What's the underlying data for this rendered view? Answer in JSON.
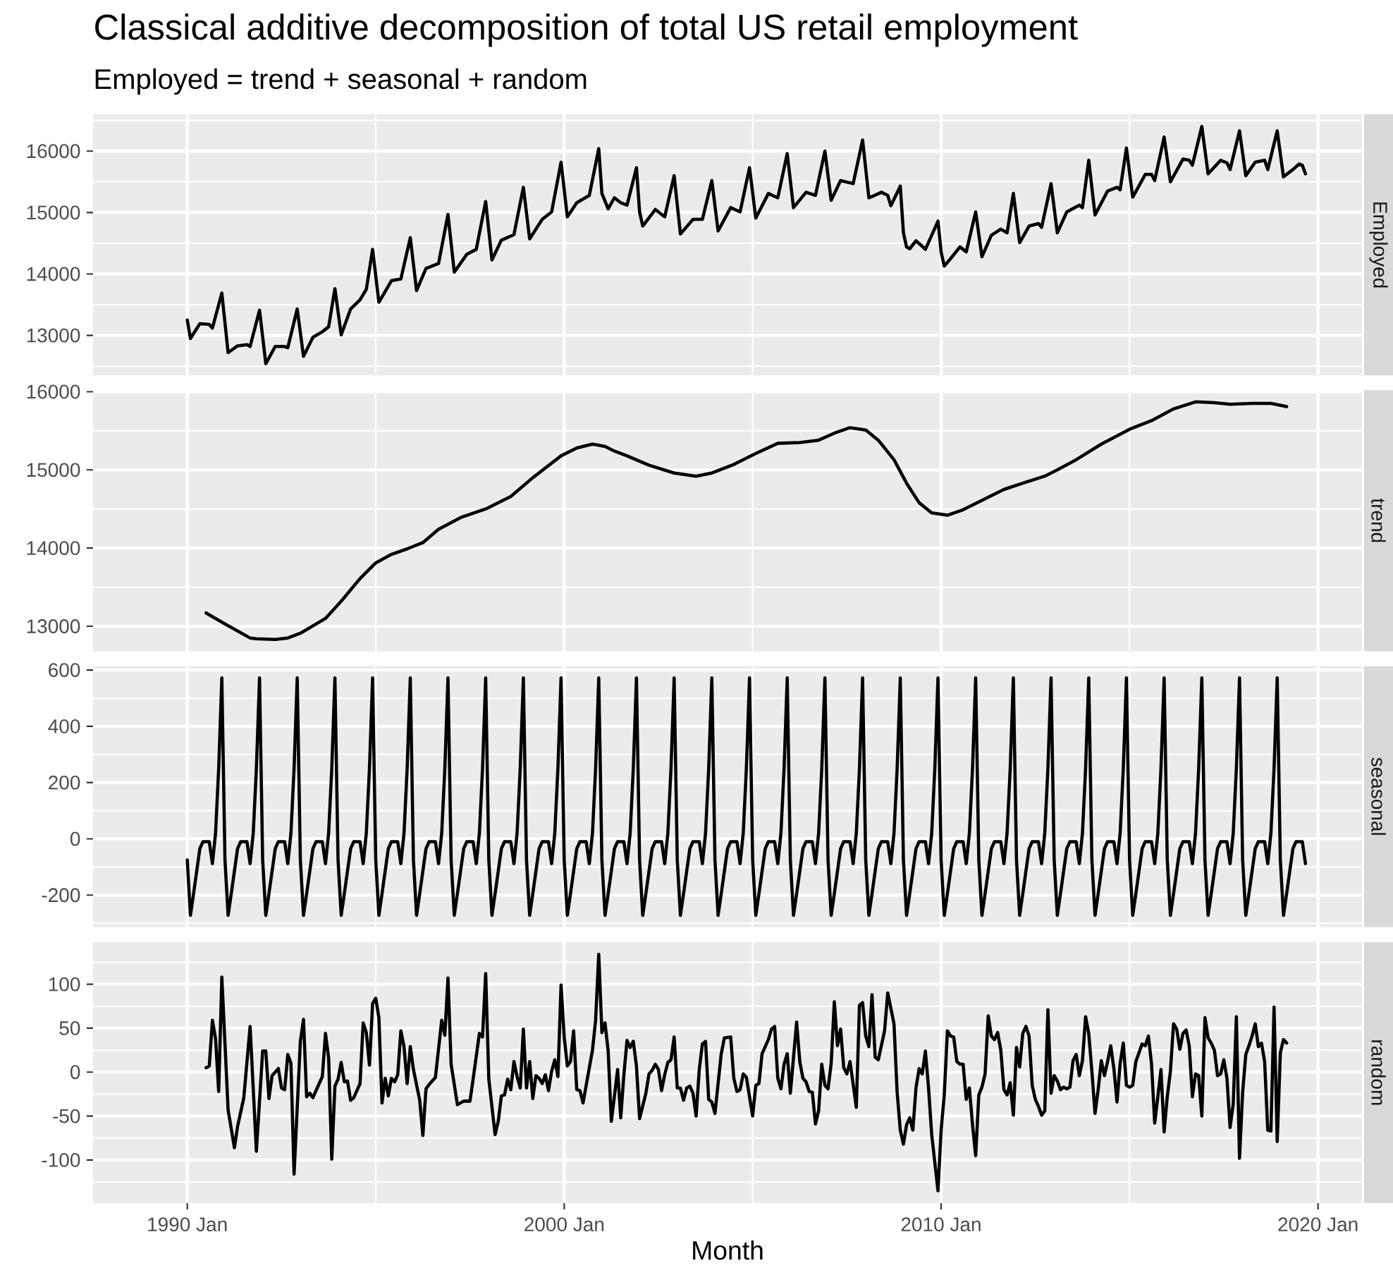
{
  "chart_data": [
    {
      "type": "line",
      "title": "Classical additive decomposition of total US retail employment",
      "subtitle": "Employed = trend + seasonal + random",
      "xlim": [
        "1987-07",
        "2021-03"
      ],
      "xticks": [
        "1990-01",
        "2000-01",
        "2010-01",
        "2020-01"
      ],
      "ylim": [
        12350,
        16600
      ],
      "yticks": [
        13000,
        14000,
        15000,
        16000
      ],
      "grid": true,
      "tick_labels": "y",
      "x": [
        "1990-01",
        "1990-02",
        "1990-05",
        "1990-08",
        "1990-09",
        "1990-12",
        "1991-02",
        "1991-05",
        "1991-08",
        "1991-09",
        "1991-12",
        "1992-02",
        "1992-05",
        "1992-08",
        "1992-09",
        "1992-12",
        "1993-02",
        "1993-05",
        "1993-08",
        "1993-10",
        "1993-12",
        "1994-02",
        "1994-05",
        "1994-08",
        "1994-10",
        "1994-12",
        "1995-02",
        "1995-06",
        "1995-09",
        "1995-12",
        "1996-02",
        "1996-05",
        "1996-09",
        "1996-12",
        "1997-02",
        "1997-06",
        "1997-09",
        "1997-12",
        "1998-02",
        "1998-05",
        "1998-09",
        "1998-12",
        "1999-02",
        "1999-06",
        "1999-09",
        "1999-12",
        "2000-02",
        "2000-05",
        "2000-09",
        "2000-12",
        "2001-01",
        "2001-03",
        "2001-05",
        "2001-07",
        "2001-09",
        "2001-12",
        "2002-01",
        "2002-02",
        "2002-06",
        "2002-09",
        "2002-12",
        "2003-02",
        "2003-06",
        "2003-09",
        "2003-12",
        "2004-02",
        "2004-06",
        "2004-09",
        "2004-12",
        "2005-02",
        "2005-06",
        "2005-09",
        "2005-12",
        "2006-02",
        "2006-06",
        "2006-09",
        "2006-12",
        "2007-02",
        "2007-05",
        "2007-09",
        "2007-12",
        "2008-02",
        "2008-03",
        "2008-06",
        "2008-08",
        "2008-09",
        "2008-12",
        "2009-01",
        "2009-02",
        "2009-03",
        "2009-05",
        "2009-07",
        "2009-08",
        "2009-12",
        "2010-01",
        "2010-02",
        "2010-04",
        "2010-07",
        "2010-09",
        "2010-12",
        "2011-02",
        "2011-05",
        "2011-08",
        "2011-10",
        "2011-12",
        "2012-02",
        "2012-05",
        "2012-08",
        "2012-09",
        "2012-12",
        "2013-02",
        "2013-05",
        "2013-09",
        "2013-10",
        "2013-12",
        "2014-02",
        "2014-06",
        "2014-09",
        "2014-10",
        "2014-12",
        "2015-02",
        "2015-06",
        "2015-08",
        "2015-09",
        "2015-12",
        "2016-02",
        "2016-06",
        "2016-08",
        "2016-09",
        "2016-12",
        "2017-02",
        "2017-06",
        "2017-08",
        "2017-09",
        "2017-12",
        "2018-02",
        "2018-05",
        "2018-08",
        "2018-09",
        "2018-12",
        "2019-02",
        "2019-05",
        "2019-07",
        "2019-08",
        "2019-09"
      ],
      "series": [
        {
          "name": "Employed",
          "color": "#000000",
          "values": [
            13250,
            12950,
            13190,
            13180,
            13120,
            13690,
            12720,
            12830,
            12850,
            12820,
            13410,
            12540,
            12820,
            12820,
            12800,
            13430,
            12660,
            12970,
            13060,
            13140,
            13760,
            13010,
            13430,
            13580,
            13750,
            14400,
            13540,
            13890,
            13920,
            14590,
            13730,
            14090,
            14170,
            14970,
            14030,
            14320,
            14400,
            15180,
            14230,
            14550,
            14640,
            15410,
            14570,
            14890,
            15010,
            15820,
            14930,
            15160,
            15280,
            16040,
            15310,
            15060,
            15240,
            15160,
            15120,
            15730,
            15010,
            14780,
            15050,
            14930,
            15600,
            14650,
            14890,
            14890,
            15520,
            14700,
            15080,
            15010,
            15730,
            14910,
            15310,
            15240,
            15960,
            15080,
            15330,
            15280,
            16000,
            15200,
            15520,
            15470,
            16180,
            15240,
            15260,
            15330,
            15280,
            15110,
            15430,
            14670,
            14440,
            14410,
            14540,
            14450,
            14400,
            14860,
            14360,
            14130,
            14250,
            14440,
            14360,
            15010,
            14280,
            14630,
            14730,
            14670,
            15310,
            14510,
            14780,
            14820,
            14760,
            15470,
            14670,
            15010,
            15120,
            15080,
            15850,
            14960,
            15350,
            15410,
            15370,
            16050,
            15250,
            15620,
            15620,
            15520,
            16230,
            15500,
            15870,
            15850,
            15770,
            16400,
            15630,
            15850,
            15810,
            15700,
            16330,
            15600,
            15820,
            15850,
            15700,
            16330,
            15580,
            15700,
            15790,
            15770,
            15630
          ]
        }
      ]
    },
    {
      "type": "line",
      "xlim": [
        "1987-07",
        "2021-03"
      ],
      "xticks": [
        "1990-01",
        "2000-01",
        "2010-01",
        "2020-01"
      ],
      "ylim": [
        12680,
        16020
      ],
      "yticks": [
        13000,
        14000,
        15000,
        16000
      ],
      "grid": true,
      "tick_labels": "y",
      "x": [
        "1990-07",
        "1991-01",
        "1991-09",
        "1991-11",
        "1992-05",
        "1992-09",
        "1993-01",
        "1993-09",
        "1994-02",
        "1994-08",
        "1995-01",
        "1995-06",
        "1995-11",
        "1996-04",
        "1996-09",
        "1997-04",
        "1997-12",
        "1998-08",
        "1999-03",
        "1999-12",
        "2000-05",
        "2000-10",
        "2001-02",
        "2001-05",
        "2001-09",
        "2002-04",
        "2002-12",
        "2003-07",
        "2003-12",
        "2004-07",
        "2005-02",
        "2005-09",
        "2006-04",
        "2006-10",
        "2007-03",
        "2007-08",
        "2008-01",
        "2008-05",
        "2008-10",
        "2009-02",
        "2009-06",
        "2009-10",
        "2010-03",
        "2010-08",
        "2011-02",
        "2011-09",
        "2012-03",
        "2012-10",
        "2013-02",
        "2013-08",
        "2014-04",
        "2015-01",
        "2015-08",
        "2016-03",
        "2016-10",
        "2017-04",
        "2017-09",
        "2018-04",
        "2018-10",
        "2019-03"
      ],
      "series": [
        {
          "name": "trend",
          "color": "#000000",
          "values": [
            13170,
            13030,
            12850,
            12840,
            12830,
            12850,
            12910,
            13100,
            13320,
            13610,
            13810,
            13920,
            13990,
            14070,
            14240,
            14390,
            14500,
            14660,
            14900,
            15180,
            15280,
            15330,
            15300,
            15240,
            15180,
            15060,
            14960,
            14920,
            14960,
            15070,
            15210,
            15340,
            15350,
            15380,
            15470,
            15540,
            15510,
            15380,
            15130,
            14830,
            14580,
            14450,
            14420,
            14490,
            14610,
            14750,
            14830,
            14920,
            15000,
            15130,
            15330,
            15520,
            15630,
            15780,
            15870,
            15860,
            15840,
            15850,
            15850,
            15810
          ]
        }
      ]
    },
    {
      "type": "line",
      "xlim": [
        "1987-07",
        "2021-03"
      ],
      "xticks": [
        "1990-01",
        "2000-01",
        "2010-01",
        "2020-01"
      ],
      "ylim": [
        -314,
        614
      ],
      "yticks": [
        -200,
        0,
        200,
        400,
        600
      ],
      "grid": true,
      "tick_labels": "y",
      "x": [
        "1990-01",
        "1990-02",
        "1990-03",
        "1990-04",
        "1990-05",
        "1990-06",
        "1990-07",
        "1990-08",
        "1990-09",
        "1990-10",
        "1990-11",
        "1990-12",
        "1991-01",
        "1991-02",
        "1991-03",
        "1991-04",
        "1991-05",
        "1991-06",
        "1991-07",
        "1991-08",
        "1991-09",
        "1991-10",
        "1991-11",
        "1991-12",
        "1992-01",
        "1992-02",
        "1992-03",
        "1992-04",
        "1992-05",
        "1992-06",
        "1992-07",
        "1992-08",
        "1992-09",
        "1992-10",
        "1992-11",
        "1992-12",
        "1993-01",
        "1993-02",
        "1993-03",
        "1993-04",
        "1993-05",
        "1993-06",
        "1993-07",
        "1993-08",
        "1993-09",
        "1993-10",
        "1993-11",
        "1993-12",
        "1994-01",
        "1994-02",
        "1994-03",
        "1994-04",
        "1994-05",
        "1994-06",
        "1994-07",
        "1994-08",
        "1994-09",
        "1994-10",
        "1994-11",
        "1994-12",
        "1995-01",
        "1995-02",
        "1995-03",
        "1995-04",
        "1995-05",
        "1995-06",
        "1995-07",
        "1995-08",
        "1995-09",
        "1995-10",
        "1995-11",
        "1995-12",
        "1996-01",
        "1996-02",
        "1996-03",
        "1996-04",
        "1996-05",
        "1996-06",
        "1996-07",
        "1996-08",
        "1996-09",
        "1996-10",
        "1996-11",
        "1996-12",
        "1997-01",
        "1997-02",
        "1997-03",
        "1997-04",
        "1997-05",
        "1997-06",
        "1997-07",
        "1997-08",
        "1997-09",
        "1997-10",
        "1997-11",
        "1997-12",
        "1998-01",
        "1998-02",
        "1998-03",
        "1998-04",
        "1998-05",
        "1998-06",
        "1998-07",
        "1998-08",
        "1998-09",
        "1998-10",
        "1998-11",
        "1998-12",
        "1999-01",
        "1999-02",
        "1999-03",
        "1999-04",
        "1999-05",
        "1999-06",
        "1999-07",
        "1999-08",
        "1999-09",
        "1999-10",
        "1999-11",
        "1999-12",
        "2000-01",
        "2000-02",
        "2000-03",
        "2000-04",
        "2000-05",
        "2000-06",
        "2000-07",
        "2000-08",
        "2000-09",
        "2000-10",
        "2000-11",
        "2000-12",
        "2001-01",
        "2001-02",
        "2001-03",
        "2001-04",
        "2001-05",
        "2001-06",
        "2001-07",
        "2001-08",
        "2001-09",
        "2001-10",
        "2001-11",
        "2001-12",
        "2002-01",
        "2002-02",
        "2002-03",
        "2002-04",
        "2002-05",
        "2002-06",
        "2002-07",
        "2002-08",
        "2002-09",
        "2002-10",
        "2002-11",
        "2002-12",
        "2003-01",
        "2003-02",
        "2003-03",
        "2003-04",
        "2003-05",
        "2003-06",
        "2003-07",
        "2003-08",
        "2003-09",
        "2003-10",
        "2003-11",
        "2003-12",
        "2004-01",
        "2004-02",
        "2004-03",
        "2004-04",
        "2004-05",
        "2004-06",
        "2004-07",
        "2004-08",
        "2004-09",
        "2004-10",
        "2004-11",
        "2004-12",
        "2005-01",
        "2005-02",
        "2005-03",
        "2005-04",
        "2005-05",
        "2005-06",
        "2005-07",
        "2005-08",
        "2005-09",
        "2005-10",
        "2005-11",
        "2005-12",
        "2006-01",
        "2006-02",
        "2006-03",
        "2006-04",
        "2006-05",
        "2006-06",
        "2006-07",
        "2006-08",
        "2006-09",
        "2006-10",
        "2006-11",
        "2006-12",
        "2007-01",
        "2007-02",
        "2007-03",
        "2007-04",
        "2007-05",
        "2007-06",
        "2007-07",
        "2007-08",
        "2007-09",
        "2007-10",
        "2007-11",
        "2007-12",
        "2008-01",
        "2008-02",
        "2008-03",
        "2008-04",
        "2008-05",
        "2008-06",
        "2008-07",
        "2008-08",
        "2008-09",
        "2008-10",
        "2008-11",
        "2008-12",
        "2009-01",
        "2009-02",
        "2009-03",
        "2009-04",
        "2009-05",
        "2009-06",
        "2009-07",
        "2009-08",
        "2009-09",
        "2009-10",
        "2009-11",
        "2009-12",
        "2010-01",
        "2010-02",
        "2010-03",
        "2010-04",
        "2010-05",
        "2010-06",
        "2010-07",
        "2010-08",
        "2010-09",
        "2010-10",
        "2010-11",
        "2010-12",
        "2011-01",
        "2011-02",
        "2011-03",
        "2011-04",
        "2011-05",
        "2011-06",
        "2011-07",
        "2011-08",
        "2011-09",
        "2011-10",
        "2011-11",
        "2011-12",
        "2012-01",
        "2012-02",
        "2012-03",
        "2012-04",
        "2012-05",
        "2012-06",
        "2012-07",
        "2012-08",
        "2012-09",
        "2012-10",
        "2012-11",
        "2012-12",
        "2013-01",
        "2013-02",
        "2013-03",
        "2013-04",
        "2013-05",
        "2013-06",
        "2013-07",
        "2013-08",
        "2013-09",
        "2013-10",
        "2013-11",
        "2013-12",
        "2014-01",
        "2014-02",
        "2014-03",
        "2014-04",
        "2014-05",
        "2014-06",
        "2014-07",
        "2014-08",
        "2014-09",
        "2014-10",
        "2014-11",
        "2014-12",
        "2015-01",
        "2015-02",
        "2015-03",
        "2015-04",
        "2015-05",
        "2015-06",
        "2015-07",
        "2015-08",
        "2015-09",
        "2015-10",
        "2015-11",
        "2015-12",
        "2016-01",
        "2016-02",
        "2016-03",
        "2016-04",
        "2016-05",
        "2016-06",
        "2016-07",
        "2016-08",
        "2016-09",
        "2016-10",
        "2016-11",
        "2016-12",
        "2017-01",
        "2017-02",
        "2017-03",
        "2017-04",
        "2017-05",
        "2017-06",
        "2017-07",
        "2017-08",
        "2017-09",
        "2017-10",
        "2017-11",
        "2017-12",
        "2018-01",
        "2018-02",
        "2018-03",
        "2018-04",
        "2018-05",
        "2018-06",
        "2018-07",
        "2018-08",
        "2018-09",
        "2018-10",
        "2018-11",
        "2018-12",
        "2019-01",
        "2019-02",
        "2019-03",
        "2019-04",
        "2019-05",
        "2019-06",
        "2019-07",
        "2019-08",
        "2019-09"
      ],
      "series": [
        {
          "name": "seasonal",
          "color": "#000000",
          "values": [
            -75,
            -272,
            -195,
            -115,
            -35,
            -10,
            -10,
            -10,
            -88,
            20,
            250,
            572,
            -75,
            -272,
            -195,
            -115,
            -35,
            -10,
            -10,
            -10,
            -88,
            20,
            250,
            572,
            -75,
            -272,
            -195,
            -115,
            -35,
            -10,
            -10,
            -10,
            -88,
            20,
            250,
            572,
            -75,
            -272,
            -195,
            -115,
            -35,
            -10,
            -10,
            -10,
            -88,
            20,
            250,
            572,
            -75,
            -272,
            -195,
            -115,
            -35,
            -10,
            -10,
            -10,
            -88,
            20,
            250,
            572,
            -75,
            -272,
            -195,
            -115,
            -35,
            -10,
            -10,
            -10,
            -88,
            20,
            250,
            572,
            -75,
            -272,
            -195,
            -115,
            -35,
            -10,
            -10,
            -10,
            -88,
            20,
            250,
            572,
            -75,
            -272,
            -195,
            -115,
            -35,
            -10,
            -10,
            -10,
            -88,
            20,
            250,
            572,
            -75,
            -272,
            -195,
            -115,
            -35,
            -10,
            -10,
            -10,
            -88,
            20,
            250,
            572,
            -75,
            -272,
            -195,
            -115,
            -35,
            -10,
            -10,
            -10,
            -88,
            20,
            250,
            572,
            -75,
            -272,
            -195,
            -115,
            -35,
            -10,
            -10,
            -10,
            -88,
            20,
            250,
            572,
            -75,
            -272,
            -195,
            -115,
            -35,
            -10,
            -10,
            -10,
            -88,
            20,
            250,
            572,
            -75,
            -272,
            -195,
            -115,
            -35,
            -10,
            -10,
            -10,
            -88,
            20,
            250,
            572,
            -75,
            -272,
            -195,
            -115,
            -35,
            -10,
            -10,
            -10,
            -88,
            20,
            250,
            572,
            -75,
            -272,
            -195,
            -115,
            -35,
            -10,
            -10,
            -10,
            -88,
            20,
            250,
            572,
            -75,
            -272,
            -195,
            -115,
            -35,
            -10,
            -10,
            -10,
            -88,
            20,
            250,
            572,
            -75,
            -272,
            -195,
            -115,
            -35,
            -10,
            -10,
            -10,
            -88,
            20,
            250,
            572,
            -75,
            -272,
            -195,
            -115,
            -35,
            -10,
            -10,
            -10,
            -88,
            20,
            250,
            572,
            -75,
            -272,
            -195,
            -115,
            -35,
            -10,
            -10,
            -10,
            -88,
            20,
            250,
            572,
            -75,
            -272,
            -195,
            -115,
            -35,
            -10,
            -10,
            -10,
            -88,
            20,
            250,
            572,
            -75,
            -272,
            -195,
            -115,
            -35,
            -10,
            -10,
            -10,
            -88,
            20,
            250,
            572,
            -75,
            -272,
            -195,
            -115,
            -35,
            -10,
            -10,
            -10,
            -88,
            20,
            250,
            572,
            -75,
            -272,
            -195,
            -115,
            -35,
            -10,
            -10,
            -10,
            -88,
            20,
            250,
            572,
            -75,
            -272,
            -195,
            -115,
            -35,
            -10,
            -10,
            -10,
            -88,
            20,
            250,
            572,
            -75,
            -272,
            -195,
            -115,
            -35,
            -10,
            -10,
            -10,
            -88,
            20,
            250,
            572,
            -75,
            -272,
            -195,
            -115,
            -35,
            -10,
            -10,
            -10,
            -88,
            20,
            250,
            572,
            -75,
            -272,
            -195,
            -115,
            -35,
            -10,
            -10,
            -10,
            -88,
            20,
            250,
            572,
            -75,
            -272,
            -195,
            -115,
            -35,
            -10,
            -10,
            -10,
            -88,
            20,
            250,
            572,
            -75,
            -272,
            -195,
            -115,
            -35,
            -10,
            -10,
            -10,
            -88,
            20,
            250,
            572,
            -75,
            -272,
            -195,
            -115,
            -35,
            -10,
            -10,
            -10,
            -88
          ]
        }
      ]
    },
    {
      "type": "line",
      "xlabel": "Month",
      "xlim": [
        "1987-07",
        "2021-03"
      ],
      "xticks": [
        {
          "value": "1990-01",
          "label": "1990 Jan"
        },
        {
          "value": "2000-01",
          "label": "2000 Jan"
        },
        {
          "value": "2010-01",
          "label": "2010 Jan"
        },
        {
          "value": "2020-01",
          "label": "2020 Jan"
        }
      ],
      "ylim": [
        -149,
        148
      ],
      "yticks": [
        -100,
        -50,
        0,
        50,
        100
      ],
      "grid": true,
      "x": [
        "1990-07",
        "1990-08",
        "1990-09",
        "1990-10",
        "1990-11",
        "1990-12",
        "1991-02",
        "1991-04",
        "1991-05",
        "1991-07",
        "1991-09",
        "1991-11",
        "1992-01",
        "1992-02",
        "1992-03",
        "1992-04",
        "1992-06",
        "1992-07",
        "1992-08",
        "1992-09",
        "1992-10",
        "1992-11",
        "1993-01",
        "1993-02",
        "1993-03",
        "1993-04",
        "1993-05",
        "1993-08",
        "1993-09",
        "1993-10",
        "1993-11",
        "1993-12",
        "1994-01",
        "1994-02",
        "1994-03",
        "1994-04",
        "1994-05",
        "1994-06",
        "1994-08",
        "1994-09",
        "1994-10",
        "1994-11",
        "1994-12",
        "1995-01",
        "1995-02",
        "1995-03",
        "1995-04",
        "1995-05",
        "1995-06",
        "1995-07",
        "1995-08",
        "1995-09",
        "1995-10",
        "1995-11",
        "1995-12",
        "1996-01",
        "1996-03",
        "1996-04",
        "1996-05",
        "1996-06",
        "1996-08",
        "1996-10",
        "1996-11",
        "1996-12",
        "1997-01",
        "1997-03",
        "1997-05",
        "1997-07",
        "1997-08",
        "1997-10",
        "1997-11",
        "1997-12",
        "1998-01",
        "1998-03",
        "1998-04",
        "1998-05",
        "1998-06",
        "1998-07",
        "1998-08",
        "1998-09",
        "1998-10",
        "1998-11",
        "1998-12",
        "1999-01",
        "1999-02",
        "1999-03",
        "1999-04",
        "1999-05",
        "1999-06",
        "1999-07",
        "1999-08",
        "1999-09",
        "1999-10",
        "1999-11",
        "1999-12",
        "2000-01",
        "2000-02",
        "2000-03",
        "2000-04",
        "2000-05",
        "2000-06",
        "2000-07",
        "2000-10",
        "2000-11",
        "2000-12",
        "2001-01",
        "2001-02",
        "2001-03",
        "2001-04",
        "2001-05",
        "2001-06",
        "2001-07",
        "2001-08",
        "2001-09",
        "2001-10",
        "2001-11",
        "2001-12",
        "2002-01",
        "2002-03",
        "2002-04",
        "2002-05",
        "2002-06",
        "2002-07",
        "2002-08",
        "2002-09",
        "2002-10",
        "2002-11",
        "2002-12",
        "2003-01",
        "2003-02",
        "2003-03",
        "2003-04",
        "2003-05",
        "2003-06",
        "2003-07",
        "2003-08",
        "2003-09",
        "2003-10",
        "2003-11",
        "2003-12",
        "2004-01",
        "2004-03",
        "2004-04",
        "2004-06",
        "2004-07",
        "2004-08",
        "2004-09",
        "2004-10",
        "2004-11",
        "2005-01",
        "2005-02",
        "2005-03",
        "2005-04",
        "2005-05",
        "2005-06",
        "2005-07",
        "2005-08",
        "2005-09",
        "2005-10",
        "2005-11",
        "2005-12",
        "2006-01",
        "2006-03",
        "2006-04",
        "2006-05",
        "2006-06",
        "2006-07",
        "2006-08",
        "2006-09",
        "2006-10",
        "2006-11",
        "2006-12",
        "2007-01",
        "2007-02",
        "2007-03",
        "2007-04",
        "2007-05",
        "2007-06",
        "2007-07",
        "2007-08",
        "2007-10",
        "2007-11",
        "2007-12",
        "2008-01",
        "2008-02",
        "2008-03",
        "2008-04",
        "2008-05",
        "2008-07",
        "2008-08",
        "2008-10",
        "2008-11",
        "2008-12",
        "2009-01",
        "2009-02",
        "2009-03",
        "2009-04",
        "2009-05",
        "2009-06",
        "2009-07",
        "2009-08",
        "2009-09",
        "2009-10",
        "2009-12",
        "2010-01",
        "2010-02",
        "2010-03",
        "2010-04",
        "2010-05",
        "2010-06",
        "2010-07",
        "2010-08",
        "2010-09",
        "2010-10",
        "2010-11",
        "2010-12",
        "2011-01",
        "2011-02",
        "2011-03",
        "2011-04",
        "2011-05",
        "2011-06",
        "2011-07",
        "2011-08",
        "2011-09",
        "2011-10",
        "2011-11",
        "2011-12",
        "2012-01",
        "2012-02",
        "2012-03",
        "2012-04",
        "2012-05",
        "2012-06",
        "2012-07",
        "2012-08",
        "2012-09",
        "2012-10",
        "2012-11",
        "2012-12",
        "2013-01",
        "2013-02",
        "2013-03",
        "2013-04",
        "2013-05",
        "2013-06",
        "2013-07",
        "2013-08",
        "2013-09",
        "2013-10",
        "2013-11",
        "2013-12",
        "2014-01",
        "2014-02",
        "2014-03",
        "2014-04",
        "2014-05",
        "2014-06",
        "2014-07",
        "2014-08",
        "2014-09",
        "2014-10",
        "2014-11",
        "2014-12",
        "2015-01",
        "2015-02",
        "2015-03",
        "2015-04",
        "2015-05",
        "2015-06",
        "2015-07",
        "2015-08",
        "2015-09",
        "2015-10",
        "2015-11",
        "2015-12",
        "2016-01",
        "2016-02",
        "2016-03",
        "2016-04",
        "2016-05",
        "2016-06",
        "2016-07",
        "2016-08",
        "2016-09",
        "2016-10",
        "2016-11",
        "2016-12",
        "2017-01",
        "2017-02",
        "2017-03",
        "2017-04",
        "2017-05",
        "2017-06",
        "2017-07",
        "2017-08",
        "2017-09",
        "2017-10",
        "2017-11",
        "2017-12",
        "2018-01",
        "2018-02",
        "2018-03",
        "2018-04",
        "2018-05",
        "2018-06",
        "2018-07",
        "2018-08",
        "2018-09",
        "2018-10",
        "2018-11",
        "2018-12",
        "2019-01",
        "2019-02",
        "2019-03"
      ],
      "series": [
        {
          "name": "random",
          "color": "#000000",
          "values": [
            5,
            7,
            59,
            38,
            -22,
            108,
            -43,
            -86,
            -62,
            -29,
            52,
            -90,
            24,
            24,
            -30,
            -4,
            4,
            -18,
            -20,
            20,
            10,
            -116,
            35,
            60,
            -28,
            -24,
            -29,
            -5,
            44,
            16,
            -99,
            -16,
            -8,
            11,
            -11,
            -10,
            -32,
            -29,
            -13,
            56,
            45,
            8,
            78,
            84,
            62,
            -35,
            -7,
            -27,
            -7,
            -11,
            -3,
            47,
            29,
            -13,
            29,
            3,
            -32,
            -72,
            -19,
            -14,
            -6,
            59,
            42,
            107,
            9,
            -37,
            -33,
            -33,
            -8,
            44,
            40,
            112,
            -8,
            -71,
            -56,
            -27,
            -26,
            -8,
            -20,
            12,
            -5,
            -18,
            49,
            -18,
            12,
            -30,
            -4,
            -7,
            -13,
            -3,
            -21,
            1,
            14,
            -5,
            99,
            40,
            7,
            12,
            47,
            -20,
            -21,
            -35,
            25,
            59,
            134,
            45,
            56,
            24,
            -56,
            -27,
            3,
            -52,
            -3,
            36,
            28,
            35,
            7,
            -53,
            -24,
            -2,
            2,
            9,
            3,
            -21,
            -3,
            11,
            14,
            40,
            -18,
            -18,
            -32,
            -18,
            -16,
            -24,
            -50,
            3,
            32,
            35,
            -31,
            -34,
            -47,
            21,
            39,
            40,
            -7,
            -22,
            -20,
            -2,
            -6,
            -50,
            -15,
            -13,
            21,
            29,
            37,
            49,
            52,
            -7,
            -19,
            9,
            21,
            -24,
            57,
            12,
            -7,
            -11,
            -22,
            -23,
            -59,
            -44,
            9,
            -15,
            -19,
            10,
            80,
            30,
            49,
            5,
            -2,
            12,
            -40,
            76,
            79,
            41,
            29,
            88,
            17,
            14,
            47,
            90,
            55,
            -23,
            -66,
            -82,
            -60,
            -52,
            -66,
            -18,
            4,
            -2,
            24,
            -18,
            -71,
            -135,
            -66,
            -26,
            47,
            41,
            40,
            12,
            9,
            9,
            -31,
            -18,
            -60,
            -95,
            -26,
            -17,
            -2,
            64,
            41,
            37,
            45,
            25,
            -20,
            -26,
            -12,
            -49,
            28,
            6,
            44,
            52,
            41,
            -15,
            -31,
            -39,
            -49,
            -44,
            71,
            -24,
            -4,
            -10,
            -20,
            -17,
            -19,
            -17,
            13,
            20,
            -4,
            13,
            63,
            44,
            1,
            -47,
            -20,
            13,
            -4,
            12,
            30,
            4,
            -34,
            10,
            33,
            -15,
            -17,
            -15,
            12,
            22,
            32,
            30,
            41,
            9,
            -58,
            -28,
            3,
            -68,
            -28,
            1,
            55,
            49,
            26,
            44,
            48,
            30,
            -28,
            -2,
            -4,
            -50,
            62,
            39,
            33,
            25,
            -4,
            -2,
            14,
            -7,
            -63,
            -36,
            63,
            -98,
            -23,
            20,
            30,
            41,
            55,
            29,
            33,
            12,
            -66,
            -67,
            74,
            -79,
            22,
            37,
            33
          ]
        }
      ]
    }
  ]
}
